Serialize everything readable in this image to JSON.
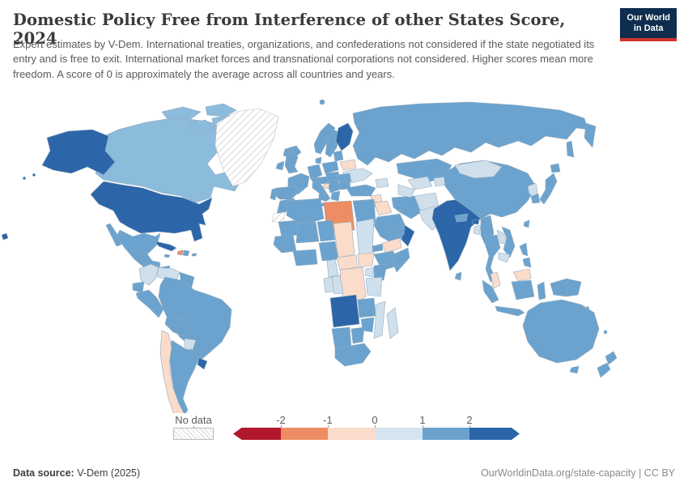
{
  "header": {
    "title": "Domestic Policy Free from Interference of other States Score, 2024",
    "logo_line1": "Our World",
    "logo_line2": "in Data"
  },
  "subtitle": "Expert estimates by V-Dem. International treaties, organizations, and confederations not considered if the state negotiated its entry and is free to exit. International market forces and transnational corporations not considered. Higher scores mean more freedom. A score of 0 is approximately the average across all countries and years.",
  "legend": {
    "no_data_label": "No data",
    "ticks": [
      "-2",
      "-1",
      "0",
      "1",
      "2"
    ],
    "segments": [
      "#b1182b",
      "#ee8d63",
      "#fbdcca",
      "#d5e4ee",
      "#6ba3ce",
      "#2c66a9"
    ]
  },
  "footer": {
    "datasource_label": "Data source:",
    "datasource_value": " V-Dem (2025)",
    "right_text": "OurWorldinData.org/state-capacity | CC BY"
  },
  "colors": {
    "logo_navy": "#0f2d4e",
    "logo_red": "#d0342c",
    "border": "#93a9bd",
    "ocean": "#ffffff",
    "value_bins": [
      {
        "max": -2,
        "color": "#b1182b"
      },
      {
        "max": -1,
        "color": "#ee8d63"
      },
      {
        "max": 0,
        "color": "#fbdcca"
      },
      {
        "max": 0.5,
        "color": "#dde9f2"
      },
      {
        "max": 1,
        "color": "#cfe0ec"
      },
      {
        "max": 1.5,
        "color": "#8cbcdc"
      },
      {
        "max": 2,
        "color": "#6ba3ce"
      },
      {
        "max": 999,
        "color": "#2c66a9"
      }
    ]
  },
  "chart_data": {
    "type": "choropleth",
    "title": "Domestic Policy Free from Interference of other States Score",
    "year": 2024,
    "legend_ticks": [
      -2,
      -1,
      0,
      1,
      2
    ],
    "legend_range": [
      -2.5,
      2.5
    ],
    "no_data": [
      "Greenland",
      "Western Sahara"
    ],
    "regions": [
      {
        "name": "United States",
        "value": 2.5
      },
      {
        "name": "Canada",
        "value": 1.3
      },
      {
        "name": "Mexico",
        "value": 1.8
      },
      {
        "name": "Guatemala",
        "value": 1.7
      },
      {
        "name": "Honduras",
        "value": 1.7
      },
      {
        "name": "Nicaragua",
        "value": 0.7
      },
      {
        "name": "Costa Rica",
        "value": 1.7
      },
      {
        "name": "Panama",
        "value": 1.7
      },
      {
        "name": "Cuba",
        "value": 2.1
      },
      {
        "name": "Jamaica",
        "value": 1.7
      },
      {
        "name": "Haiti",
        "value": -1.3
      },
      {
        "name": "Dominican Republic",
        "value": 1.7
      },
      {
        "name": "Puerto Rico",
        "value": 1.7
      },
      {
        "name": "Colombia",
        "value": 0.7
      },
      {
        "name": "Venezuela",
        "value": 0.7
      },
      {
        "name": "Guyana",
        "value": 1.7
      },
      {
        "name": "Ecuador",
        "value": 1.7
      },
      {
        "name": "Peru",
        "value": 1.8
      },
      {
        "name": "Brazil",
        "value": 1.8
      },
      {
        "name": "Bolivia",
        "value": 1.7
      },
      {
        "name": "Paraguay",
        "value": 0.7
      },
      {
        "name": "Chile",
        "value": -0.4
      },
      {
        "name": "Argentina",
        "value": 1.8
      },
      {
        "name": "Uruguay",
        "value": 2.4
      },
      {
        "name": "Iceland",
        "value": 1.8
      },
      {
        "name": "Norway",
        "value": 1.8
      },
      {
        "name": "Sweden",
        "value": 1.8
      },
      {
        "name": "Finland",
        "value": 2.6
      },
      {
        "name": "Denmark",
        "value": 1.8
      },
      {
        "name": "United Kingdom",
        "value": 1.8
      },
      {
        "name": "Ireland",
        "value": 1.8
      },
      {
        "name": "France",
        "value": 1.8
      },
      {
        "name": "Spain",
        "value": 1.8
      },
      {
        "name": "Portugal",
        "value": 1.8
      },
      {
        "name": "Germany",
        "value": 1.8
      },
      {
        "name": "Austria",
        "value": 1.8
      },
      {
        "name": "Hungary",
        "value": 1.8
      },
      {
        "name": "Italy",
        "value": 1.8
      },
      {
        "name": "Poland",
        "value": 1.8
      },
      {
        "name": "Baltics",
        "value": 1.7
      },
      {
        "name": "Belarus",
        "value": -0.4
      },
      {
        "name": "Ukraine",
        "value": 0.8
      },
      {
        "name": "Romania",
        "value": 1.7
      },
      {
        "name": "Bulgaria",
        "value": 1.7
      },
      {
        "name": "Serbia",
        "value": 1.7
      },
      {
        "name": "Bosnia and Herzegovina",
        "value": -0.3
      },
      {
        "name": "Greece",
        "value": 1.8
      },
      {
        "name": "Russia",
        "value": 1.8
      },
      {
        "name": "Turkey",
        "value": 1.8
      },
      {
        "name": "Azerbaijan",
        "value": 0.7
      },
      {
        "name": "Syria",
        "value": -0.4
      },
      {
        "name": "Iraq",
        "value": -0.3
      },
      {
        "name": "Jordan",
        "value": -0.3
      },
      {
        "name": "Iran",
        "value": 1.7
      },
      {
        "name": "Saudi Arabia",
        "value": 1.6
      },
      {
        "name": "Yemen",
        "value": -0.3
      },
      {
        "name": "Oman",
        "value": 2.2
      },
      {
        "name": "United Arab Emirates",
        "value": 1.6
      },
      {
        "name": "Kazakhstan",
        "value": 1.7
      },
      {
        "name": "Uzbekistan",
        "value": 0.7
      },
      {
        "name": "Turkmenistan",
        "value": 0.7
      },
      {
        "name": "Kyrgyzstan",
        "value": 0.7
      },
      {
        "name": "Afghanistan",
        "value": 0.7
      },
      {
        "name": "Pakistan",
        "value": 0.7
      },
      {
        "name": "India",
        "value": 2.5
      },
      {
        "name": "Nepal",
        "value": 1.6
      },
      {
        "name": "Bhutan",
        "value": 2.2
      },
      {
        "name": "Bangladesh",
        "value": 0.7
      },
      {
        "name": "Sri Lanka",
        "value": 1.7
      },
      {
        "name": "Myanmar",
        "value": 1.7
      },
      {
        "name": "Thailand",
        "value": 1.7
      },
      {
        "name": "Laos",
        "value": 0.7
      },
      {
        "name": "Vietnam",
        "value": 1.7
      },
      {
        "name": "Cambodia",
        "value": 0.8
      },
      {
        "name": "Malaysia",
        "value": -0.4
      },
      {
        "name": "China",
        "value": 1.8
      },
      {
        "name": "Mongolia",
        "value": 0.8
      },
      {
        "name": "North Korea",
        "value": 0.8
      },
      {
        "name": "South Korea",
        "value": 1.8
      },
      {
        "name": "Japan",
        "value": 1.8
      },
      {
        "name": "Taiwan",
        "value": 1.7
      },
      {
        "name": "Philippines",
        "value": 1.7
      },
      {
        "name": "Indonesia",
        "value": 1.8
      },
      {
        "name": "Papua New Guinea",
        "value": 1.7
      },
      {
        "name": "Australia",
        "value": 1.8
      },
      {
        "name": "New Zealand",
        "value": 1.8
      },
      {
        "name": "Fiji",
        "value": 1.7
      },
      {
        "name": "Morocco",
        "value": 1.8
      },
      {
        "name": "Algeria",
        "value": 1.8
      },
      {
        "name": "Tunisia",
        "value": 1.7
      },
      {
        "name": "Libya",
        "value": -1.4
      },
      {
        "name": "Egypt",
        "value": 1.8
      },
      {
        "name": "Mauritania",
        "value": 1.7
      },
      {
        "name": "Mali",
        "value": 1.7
      },
      {
        "name": "Senegal",
        "value": 1.7
      },
      {
        "name": "Ghana",
        "value": 1.8
      },
      {
        "name": "Niger",
        "value": 1.7
      },
      {
        "name": "Nigeria",
        "value": 1.8
      },
      {
        "name": "Chad",
        "value": -0.4
      },
      {
        "name": "Sudan",
        "value": 0.7
      },
      {
        "name": "Eritrea",
        "value": 1.6
      },
      {
        "name": "Ethiopia",
        "value": 1.7
      },
      {
        "name": "Somalia",
        "value": 1.6
      },
      {
        "name": "South Sudan",
        "value": -0.3
      },
      {
        "name": "Central African Republic",
        "value": -0.4
      },
      {
        "name": "Cameroon",
        "value": 0.9
      },
      {
        "name": "Gabon",
        "value": 0.9
      },
      {
        "name": "Republic of the Congo",
        "value": 0.9
      },
      {
        "name": "Democratic Republic of Congo",
        "value": -0.4
      },
      {
        "name": "Uganda",
        "value": 0.9
      },
      {
        "name": "Kenya",
        "value": 1.7
      },
      {
        "name": "Tanzania",
        "value": 0.9
      },
      {
        "name": "Angola",
        "value": 2.3
      },
      {
        "name": "Zambia",
        "value": 1.6
      },
      {
        "name": "Mozambique",
        "value": 0.9
      },
      {
        "name": "Madagascar",
        "value": 0.8
      },
      {
        "name": "Zimbabwe",
        "value": 1.7
      },
      {
        "name": "Namibia",
        "value": 1.7
      },
      {
        "name": "Botswana",
        "value": 1.7
      },
      {
        "name": "South Africa",
        "value": 1.8
      }
    ]
  }
}
